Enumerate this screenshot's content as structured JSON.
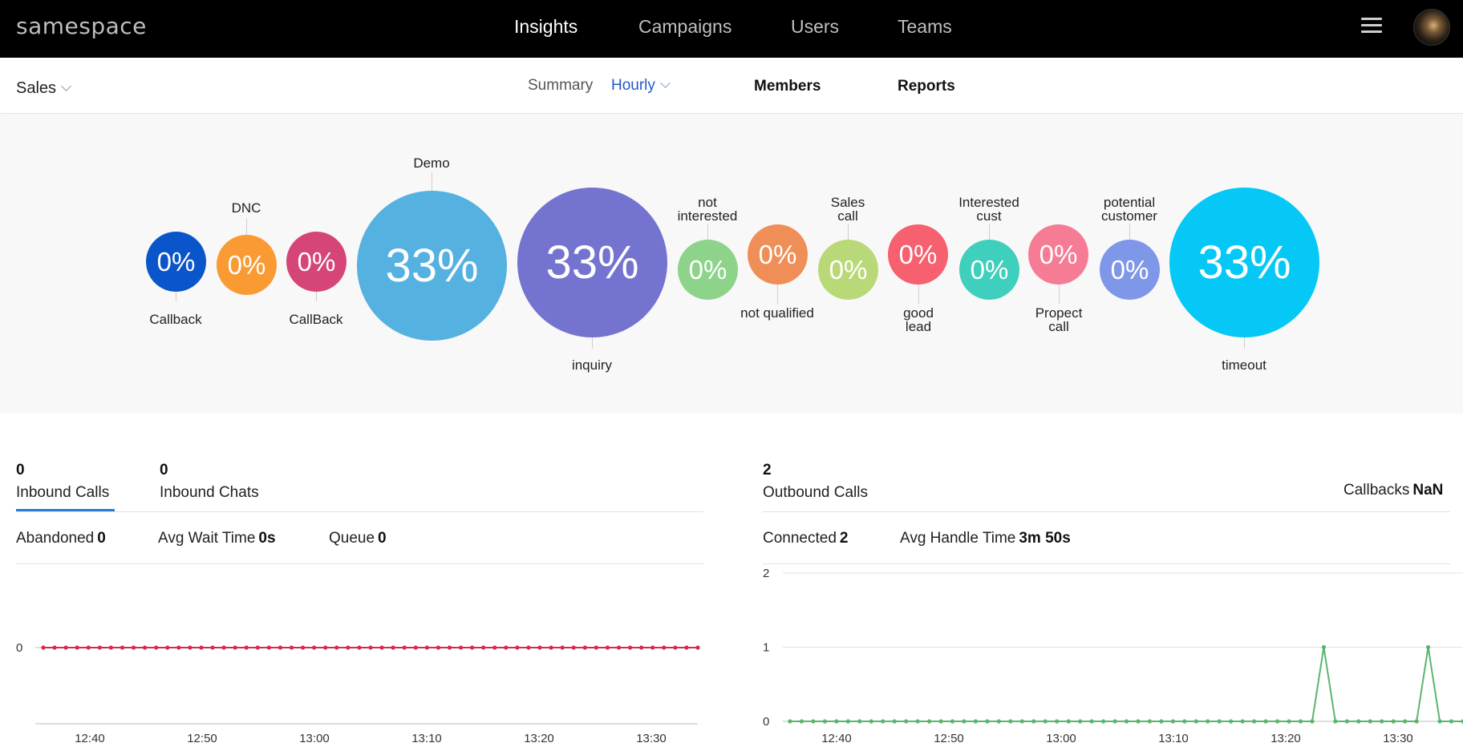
{
  "app": {
    "logo": "samespace"
  },
  "topnav": {
    "items": [
      {
        "label": "Insights",
        "active": true
      },
      {
        "label": "Campaigns",
        "active": false
      },
      {
        "label": "Users",
        "active": false
      },
      {
        "label": "Teams",
        "active": false
      }
    ]
  },
  "subnav": {
    "team": "Sales",
    "summary": "Summary",
    "period": "Hourly",
    "members": "Members",
    "reports": "Reports"
  },
  "dispositions": [
    {
      "value": "0%",
      "label": "Callback",
      "color": "#0a55c9"
    },
    {
      "value": "0%",
      "label": "DNC",
      "color": "#fa9a33"
    },
    {
      "value": "0%",
      "label": "CallBack",
      "color": "#d64578"
    },
    {
      "value": "33%",
      "label": "Demo",
      "color": "#55b1e0"
    },
    {
      "value": "33%",
      "label": "inquiry",
      "color": "#7473cf"
    },
    {
      "value": "0%",
      "label": "not interested",
      "color": "#8dd38a"
    },
    {
      "value": "0%",
      "label": "not qualified",
      "color": "#ef8f57"
    },
    {
      "value": "0%",
      "label": "Sales call",
      "color": "#b9d978"
    },
    {
      "value": "0%",
      "label": "good lead",
      "color": "#f6606f"
    },
    {
      "value": "0%",
      "label": "Interested cust",
      "color": "#3fcfbd"
    },
    {
      "value": "0%",
      "label": "Propect call",
      "color": "#f57c94"
    },
    {
      "value": "0%",
      "label": "potential customer",
      "color": "#7f97e8"
    },
    {
      "value": "33%",
      "label": "timeout",
      "color": "#05c8f6"
    }
  ],
  "inbound": {
    "calls_count": "0",
    "calls_label": "Inbound Calls",
    "chats_count": "0",
    "chats_label": "Inbound Chats",
    "abandoned_label": "Abandoned",
    "abandoned_value": "0",
    "wait_label": "Avg Wait Time",
    "wait_value": "0s",
    "queue_label": "Queue",
    "queue_value": "0"
  },
  "outbound": {
    "calls_count": "2",
    "calls_label": "Outbound Calls",
    "callbacks_label": "Callbacks",
    "callbacks_value": "NaN",
    "connected_label": "Connected",
    "connected_value": "2",
    "handle_label": "Avg Handle Time",
    "handle_value": "3m 50s"
  },
  "chart_data": [
    {
      "type": "line",
      "x_ticks": [
        "12:40",
        "12:50",
        "13:00",
        "13:10",
        "13:20",
        "13:30"
      ],
      "y_ticks": [
        "0"
      ],
      "ylim": [
        0,
        1
      ],
      "color": "#d8284d",
      "series": [
        {
          "values": [
            0,
            0,
            0,
            0,
            0,
            0,
            0,
            0,
            0,
            0,
            0,
            0,
            0,
            0,
            0,
            0,
            0,
            0,
            0,
            0,
            0,
            0,
            0,
            0,
            0,
            0,
            0,
            0,
            0,
            0,
            0,
            0,
            0,
            0,
            0,
            0,
            0,
            0,
            0,
            0,
            0,
            0,
            0,
            0,
            0,
            0,
            0,
            0,
            0,
            0,
            0,
            0,
            0,
            0,
            0,
            0,
            0,
            0,
            0
          ]
        }
      ]
    },
    {
      "type": "line",
      "x_ticks": [
        "12:40",
        "12:50",
        "13:00",
        "13:10",
        "13:20",
        "13:30"
      ],
      "y_ticks": [
        "0",
        "1",
        "2"
      ],
      "ylim": [
        0,
        2
      ],
      "color": "#5ab56e",
      "series": [
        {
          "values": [
            0,
            0,
            0,
            0,
            0,
            0,
            0,
            0,
            0,
            0,
            0,
            0,
            0,
            0,
            0,
            0,
            0,
            0,
            0,
            0,
            0,
            0,
            0,
            0,
            0,
            0,
            0,
            0,
            0,
            0,
            0,
            0,
            0,
            0,
            0,
            0,
            0,
            0,
            0,
            0,
            0,
            0,
            0,
            0,
            0,
            0,
            1,
            0,
            0,
            0,
            0,
            0,
            0,
            0,
            0,
            1,
            0,
            0,
            0
          ]
        }
      ]
    }
  ]
}
